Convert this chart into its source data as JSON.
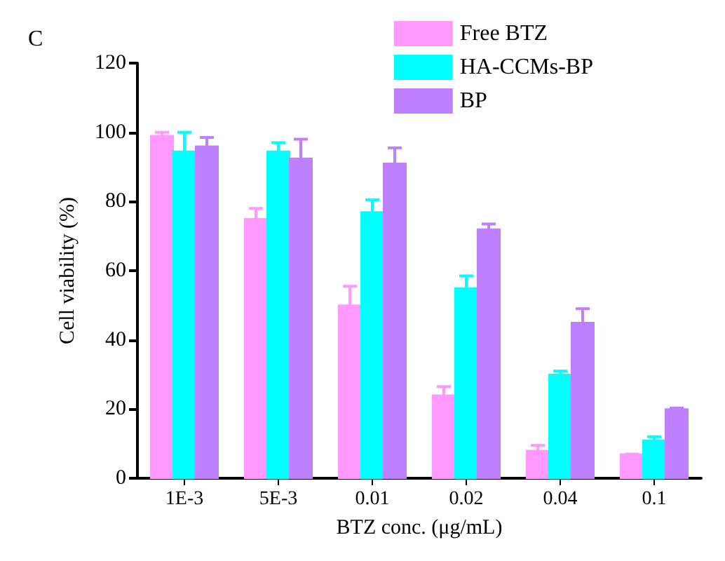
{
  "chart_data": {
    "type": "bar",
    "annotations": [
      "C"
    ],
    "xlabel": "BTZ conc. (μg/mL)",
    "ylabel": "Cell viability (%)",
    "categories": [
      "1E-3",
      "5E-3",
      "0.01",
      "0.02",
      "0.04",
      "0.1"
    ],
    "series": [
      {
        "name": "Free BTZ",
        "color": "#ff99ff",
        "values": [
          99,
          75,
          50,
          24,
          8,
          7
        ],
        "errors": [
          1,
          3,
          5.5,
          2.5,
          1.5,
          0
        ]
      },
      {
        "name": "HA-CCMs-BP",
        "color": "#00ffff",
        "values": [
          94.5,
          94.5,
          77,
          55,
          30,
          11
        ],
        "errors": [
          5.5,
          2.5,
          3.5,
          3.5,
          1,
          1
        ]
      },
      {
        "name": "BP",
        "color": "#bf80ff",
        "values": [
          96,
          92.5,
          91,
          72,
          45,
          20
        ],
        "errors": [
          2.5,
          5.5,
          4.5,
          1.5,
          4,
          0.3
        ]
      }
    ],
    "ylim": [
      0,
      120
    ],
    "yticks": [
      0,
      20,
      40,
      60,
      80,
      100,
      120
    ],
    "grid": false,
    "legend": "top right"
  }
}
